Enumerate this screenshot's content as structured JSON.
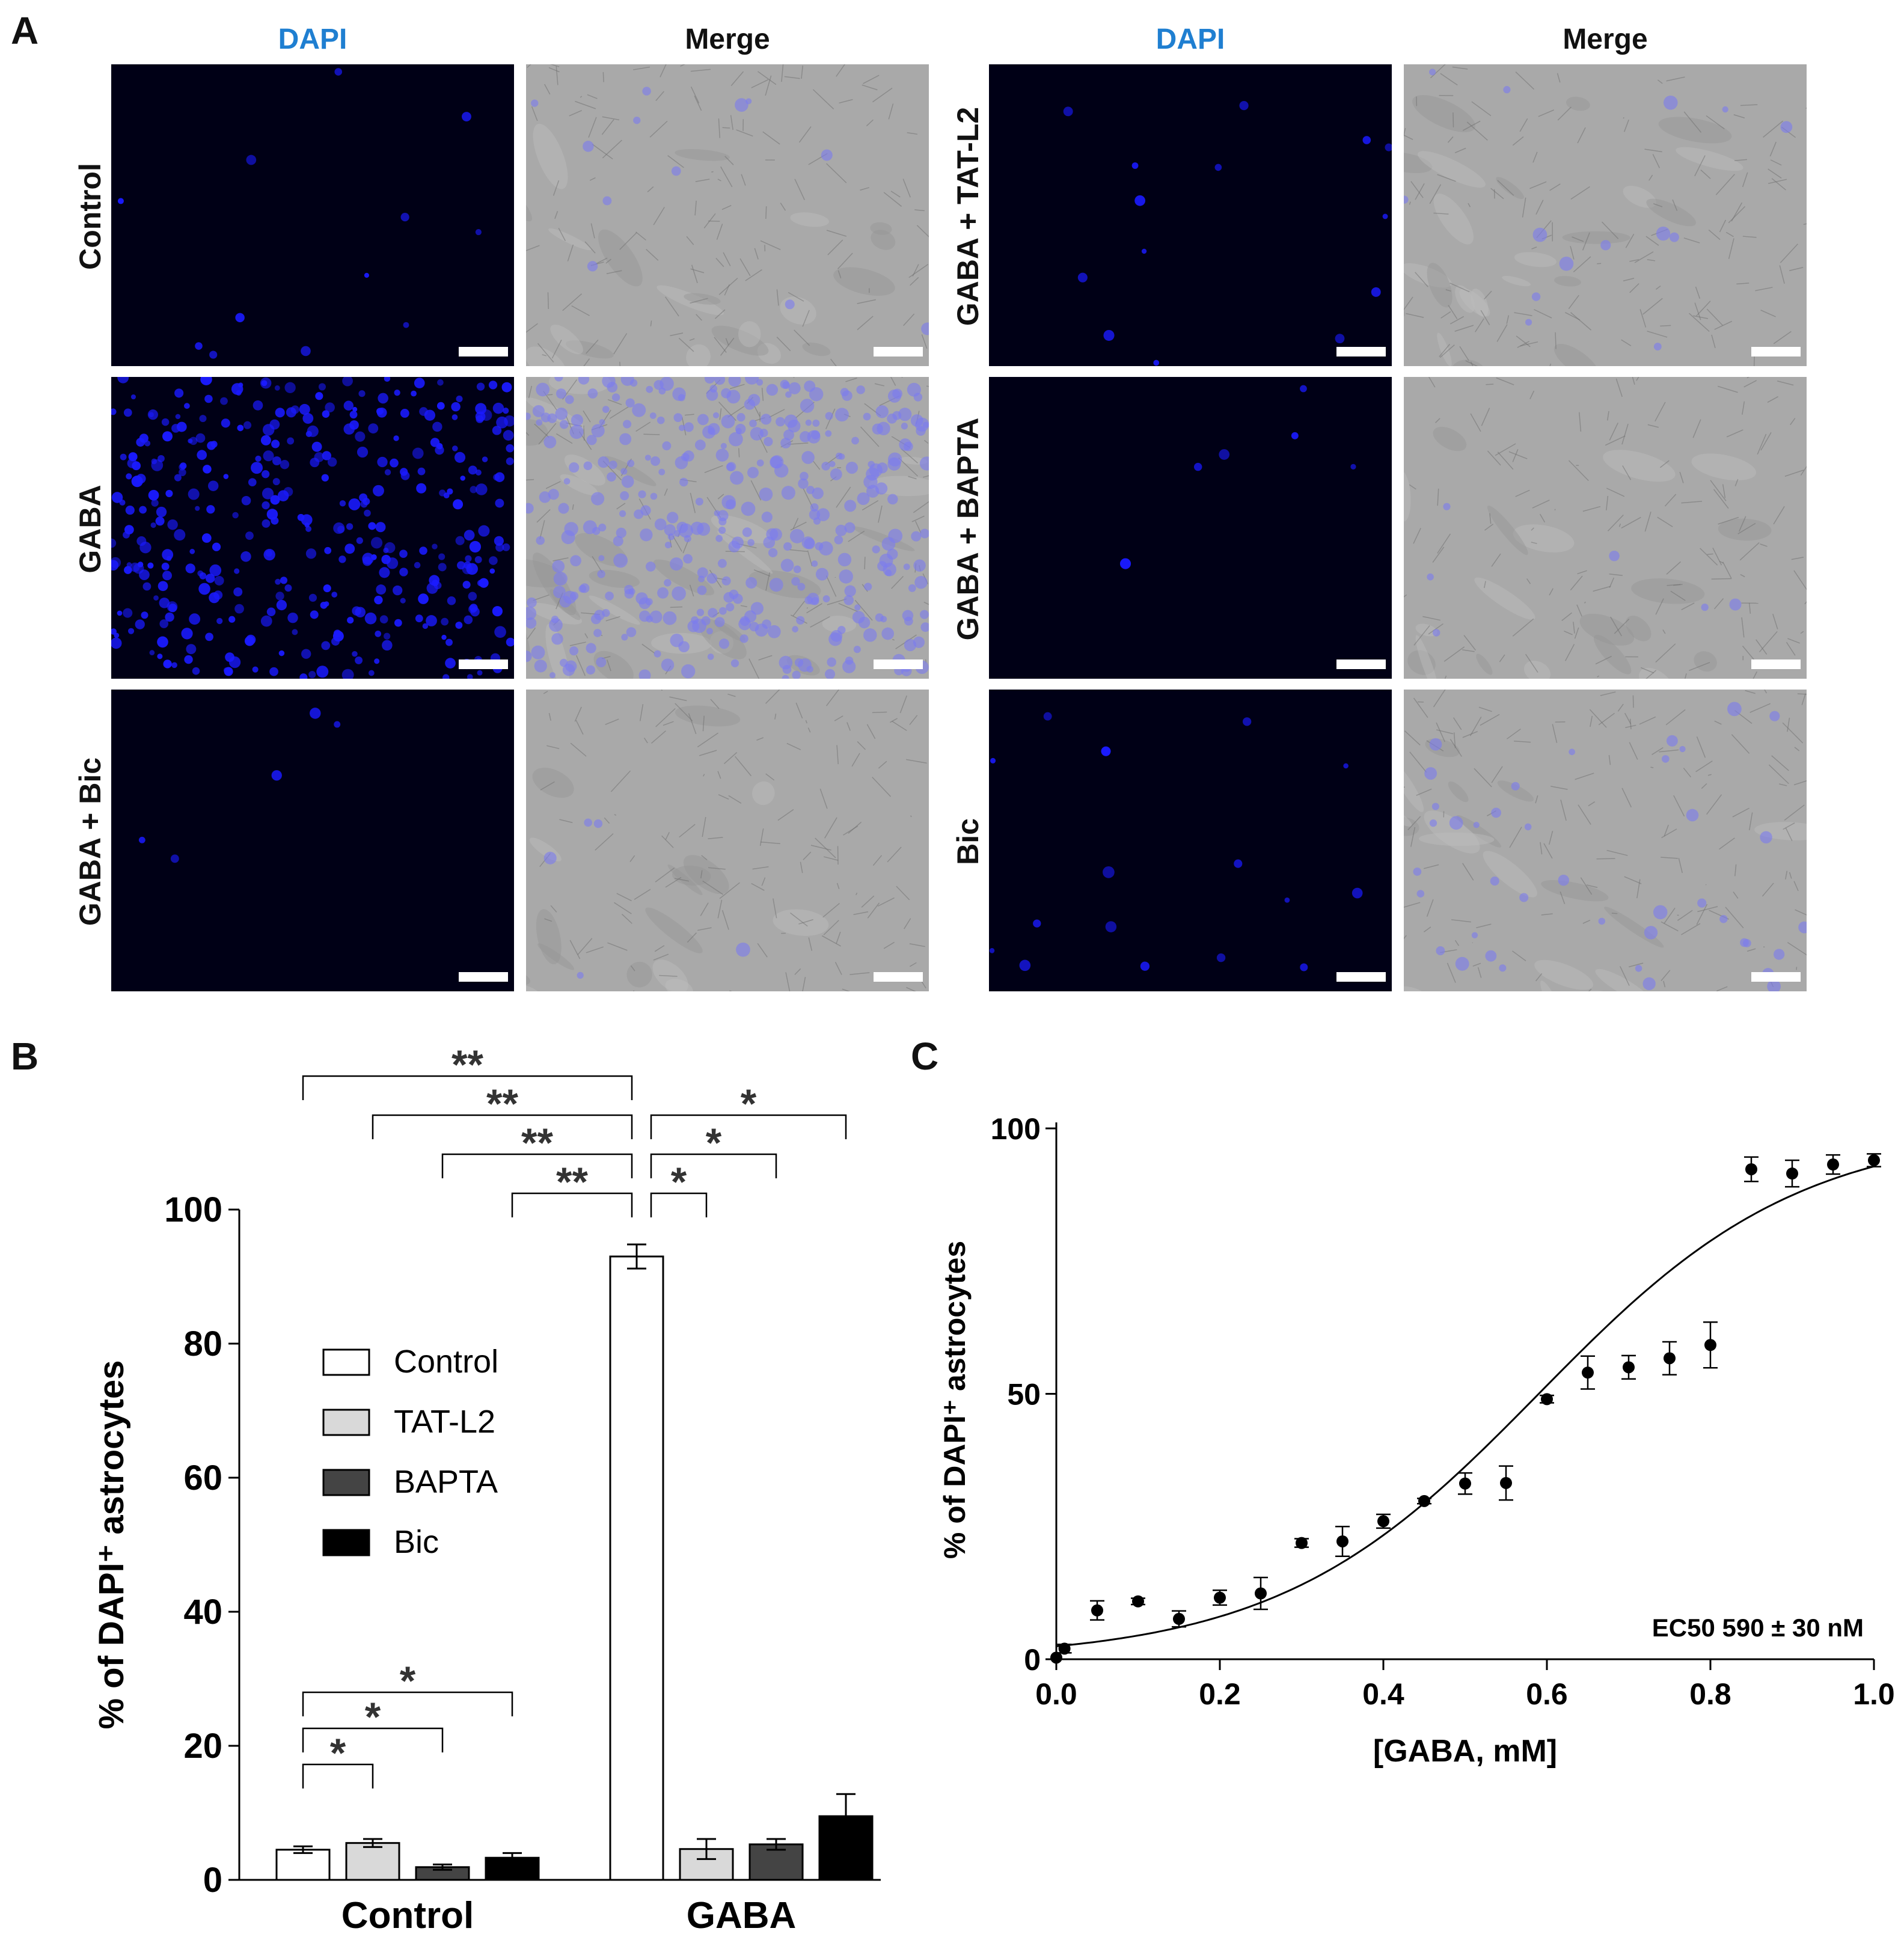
{
  "panels": {
    "A": "A",
    "B": "B",
    "C": "C"
  },
  "colors": {
    "dapi_label": "#1f7fd1",
    "dapi_bg": "#000016",
    "dapi_nucleus": "#1a1aff",
    "merge_bg": "#a9a9a9",
    "merge_tint": "#7b7bf0"
  },
  "panelA": {
    "col_dapi": "DAPI",
    "col_merge": "Merge",
    "rows": [
      {
        "label": "Control",
        "density": "low"
      },
      {
        "label": "GABA",
        "density": "high"
      },
      {
        "label": "GABA + Bic",
        "density": "very low"
      },
      {
        "label": "GABA + TAT-L2",
        "density": "low"
      },
      {
        "label": "GABA + BAPTA",
        "density": "very low"
      },
      {
        "label": "Bic",
        "density": "low"
      }
    ]
  },
  "chart_data": [
    {
      "panel": "B",
      "type": "bar",
      "ylabel": "% of  DAPI⁺ astrocytes",
      "ylim": [
        0,
        100
      ],
      "yticks": [
        0,
        20,
        40,
        60,
        80,
        100
      ],
      "categories": [
        "Control",
        "GABA"
      ],
      "legend": {
        "placement": "center-left",
        "entries": [
          "Control",
          "TAT-L2",
          "BAPTA",
          "Bic"
        ]
      },
      "series": [
        {
          "name": "Control",
          "color": "#ffffff",
          "values": [
            4.5,
            93
          ],
          "errors": [
            0.5,
            1.8
          ]
        },
        {
          "name": "TAT-L2",
          "color": "#d9d9d9",
          "values": [
            5.5,
            4.6
          ],
          "errors": [
            0.6,
            1.5
          ]
        },
        {
          "name": "BAPTA",
          "color": "#444444",
          "values": [
            1.9,
            5.3
          ],
          "errors": [
            0.4,
            0.8
          ]
        },
        {
          "name": "Bic",
          "color": "#000000",
          "values": [
            3.3,
            9.5
          ],
          "errors": [
            0.7,
            3.3
          ]
        }
      ],
      "significance": [
        {
          "from": [
            0,
            0
          ],
          "to": [
            1,
            0
          ],
          "label": "**"
        },
        {
          "from": [
            0,
            1
          ],
          "to": [
            1,
            0
          ],
          "label": "**"
        },
        {
          "from": [
            0,
            2
          ],
          "to": [
            1,
            0
          ],
          "label": "**"
        },
        {
          "from": [
            0,
            3
          ],
          "to": [
            1,
            0
          ],
          "label": "**"
        },
        {
          "from": [
            1,
            0
          ],
          "to": [
            1,
            3
          ],
          "label": "*"
        },
        {
          "from": [
            1,
            0
          ],
          "to": [
            1,
            2
          ],
          "label": "*"
        },
        {
          "from": [
            1,
            0
          ],
          "to": [
            1,
            1
          ],
          "label": "*"
        },
        {
          "from": [
            0,
            0
          ],
          "to": [
            0,
            3
          ],
          "label": "*"
        },
        {
          "from": [
            0,
            0
          ],
          "to": [
            0,
            2
          ],
          "label": "*"
        },
        {
          "from": [
            0,
            0
          ],
          "to": [
            0,
            1
          ],
          "label": "*"
        }
      ]
    },
    {
      "panel": "C",
      "type": "scatter",
      "xlabel": "[GABA, mM]",
      "ylabel": "% of  DAPI⁺ astrocytes",
      "xlim": [
        0,
        1.0
      ],
      "ylim": [
        0,
        100
      ],
      "xticks": [
        "0.0",
        "0.2",
        "0.4",
        "0.6",
        "0.8",
        "1.0"
      ],
      "yticks": [
        0,
        50,
        100
      ],
      "annotation": "EC50 590 ± 30 nM",
      "points": [
        {
          "x": 0.0,
          "y": 0.3,
          "err": 0
        },
        {
          "x": 0.01,
          "y": 2.0,
          "err": 0.8
        },
        {
          "x": 0.05,
          "y": 9.2,
          "err": 1.8
        },
        {
          "x": 0.1,
          "y": 10.9,
          "err": 0.6
        },
        {
          "x": 0.15,
          "y": 7.6,
          "err": 1.5
        },
        {
          "x": 0.2,
          "y": 11.6,
          "err": 1.4
        },
        {
          "x": 0.25,
          "y": 12.4,
          "err": 3.0
        },
        {
          "x": 0.3,
          "y": 21.9,
          "err": 0.8
        },
        {
          "x": 0.35,
          "y": 22.2,
          "err": 2.8
        },
        {
          "x": 0.4,
          "y": 26.0,
          "err": 1.3
        },
        {
          "x": 0.45,
          "y": 29.8,
          "err": 0.5
        },
        {
          "x": 0.5,
          "y": 33.1,
          "err": 2.0
        },
        {
          "x": 0.55,
          "y": 33.2,
          "err": 3.2
        },
        {
          "x": 0.6,
          "y": 49.0,
          "err": 0.7
        },
        {
          "x": 0.65,
          "y": 54.0,
          "err": 3.1
        },
        {
          "x": 0.7,
          "y": 55.0,
          "err": 2.2
        },
        {
          "x": 0.75,
          "y": 56.7,
          "err": 3.1
        },
        {
          "x": 0.8,
          "y": 59.2,
          "err": 4.3
        },
        {
          "x": 0.85,
          "y": 92.3,
          "err": 2.3
        },
        {
          "x": 0.9,
          "y": 91.5,
          "err": 2.5
        },
        {
          "x": 0.95,
          "y": 93.2,
          "err": 1.8
        },
        {
          "x": 1.0,
          "y": 94.0,
          "err": 1.2
        }
      ],
      "fit": {
        "type": "sigmoid",
        "bottom": 0,
        "top": 100,
        "ec50": 0.59,
        "slope": 0.16
      }
    }
  ]
}
